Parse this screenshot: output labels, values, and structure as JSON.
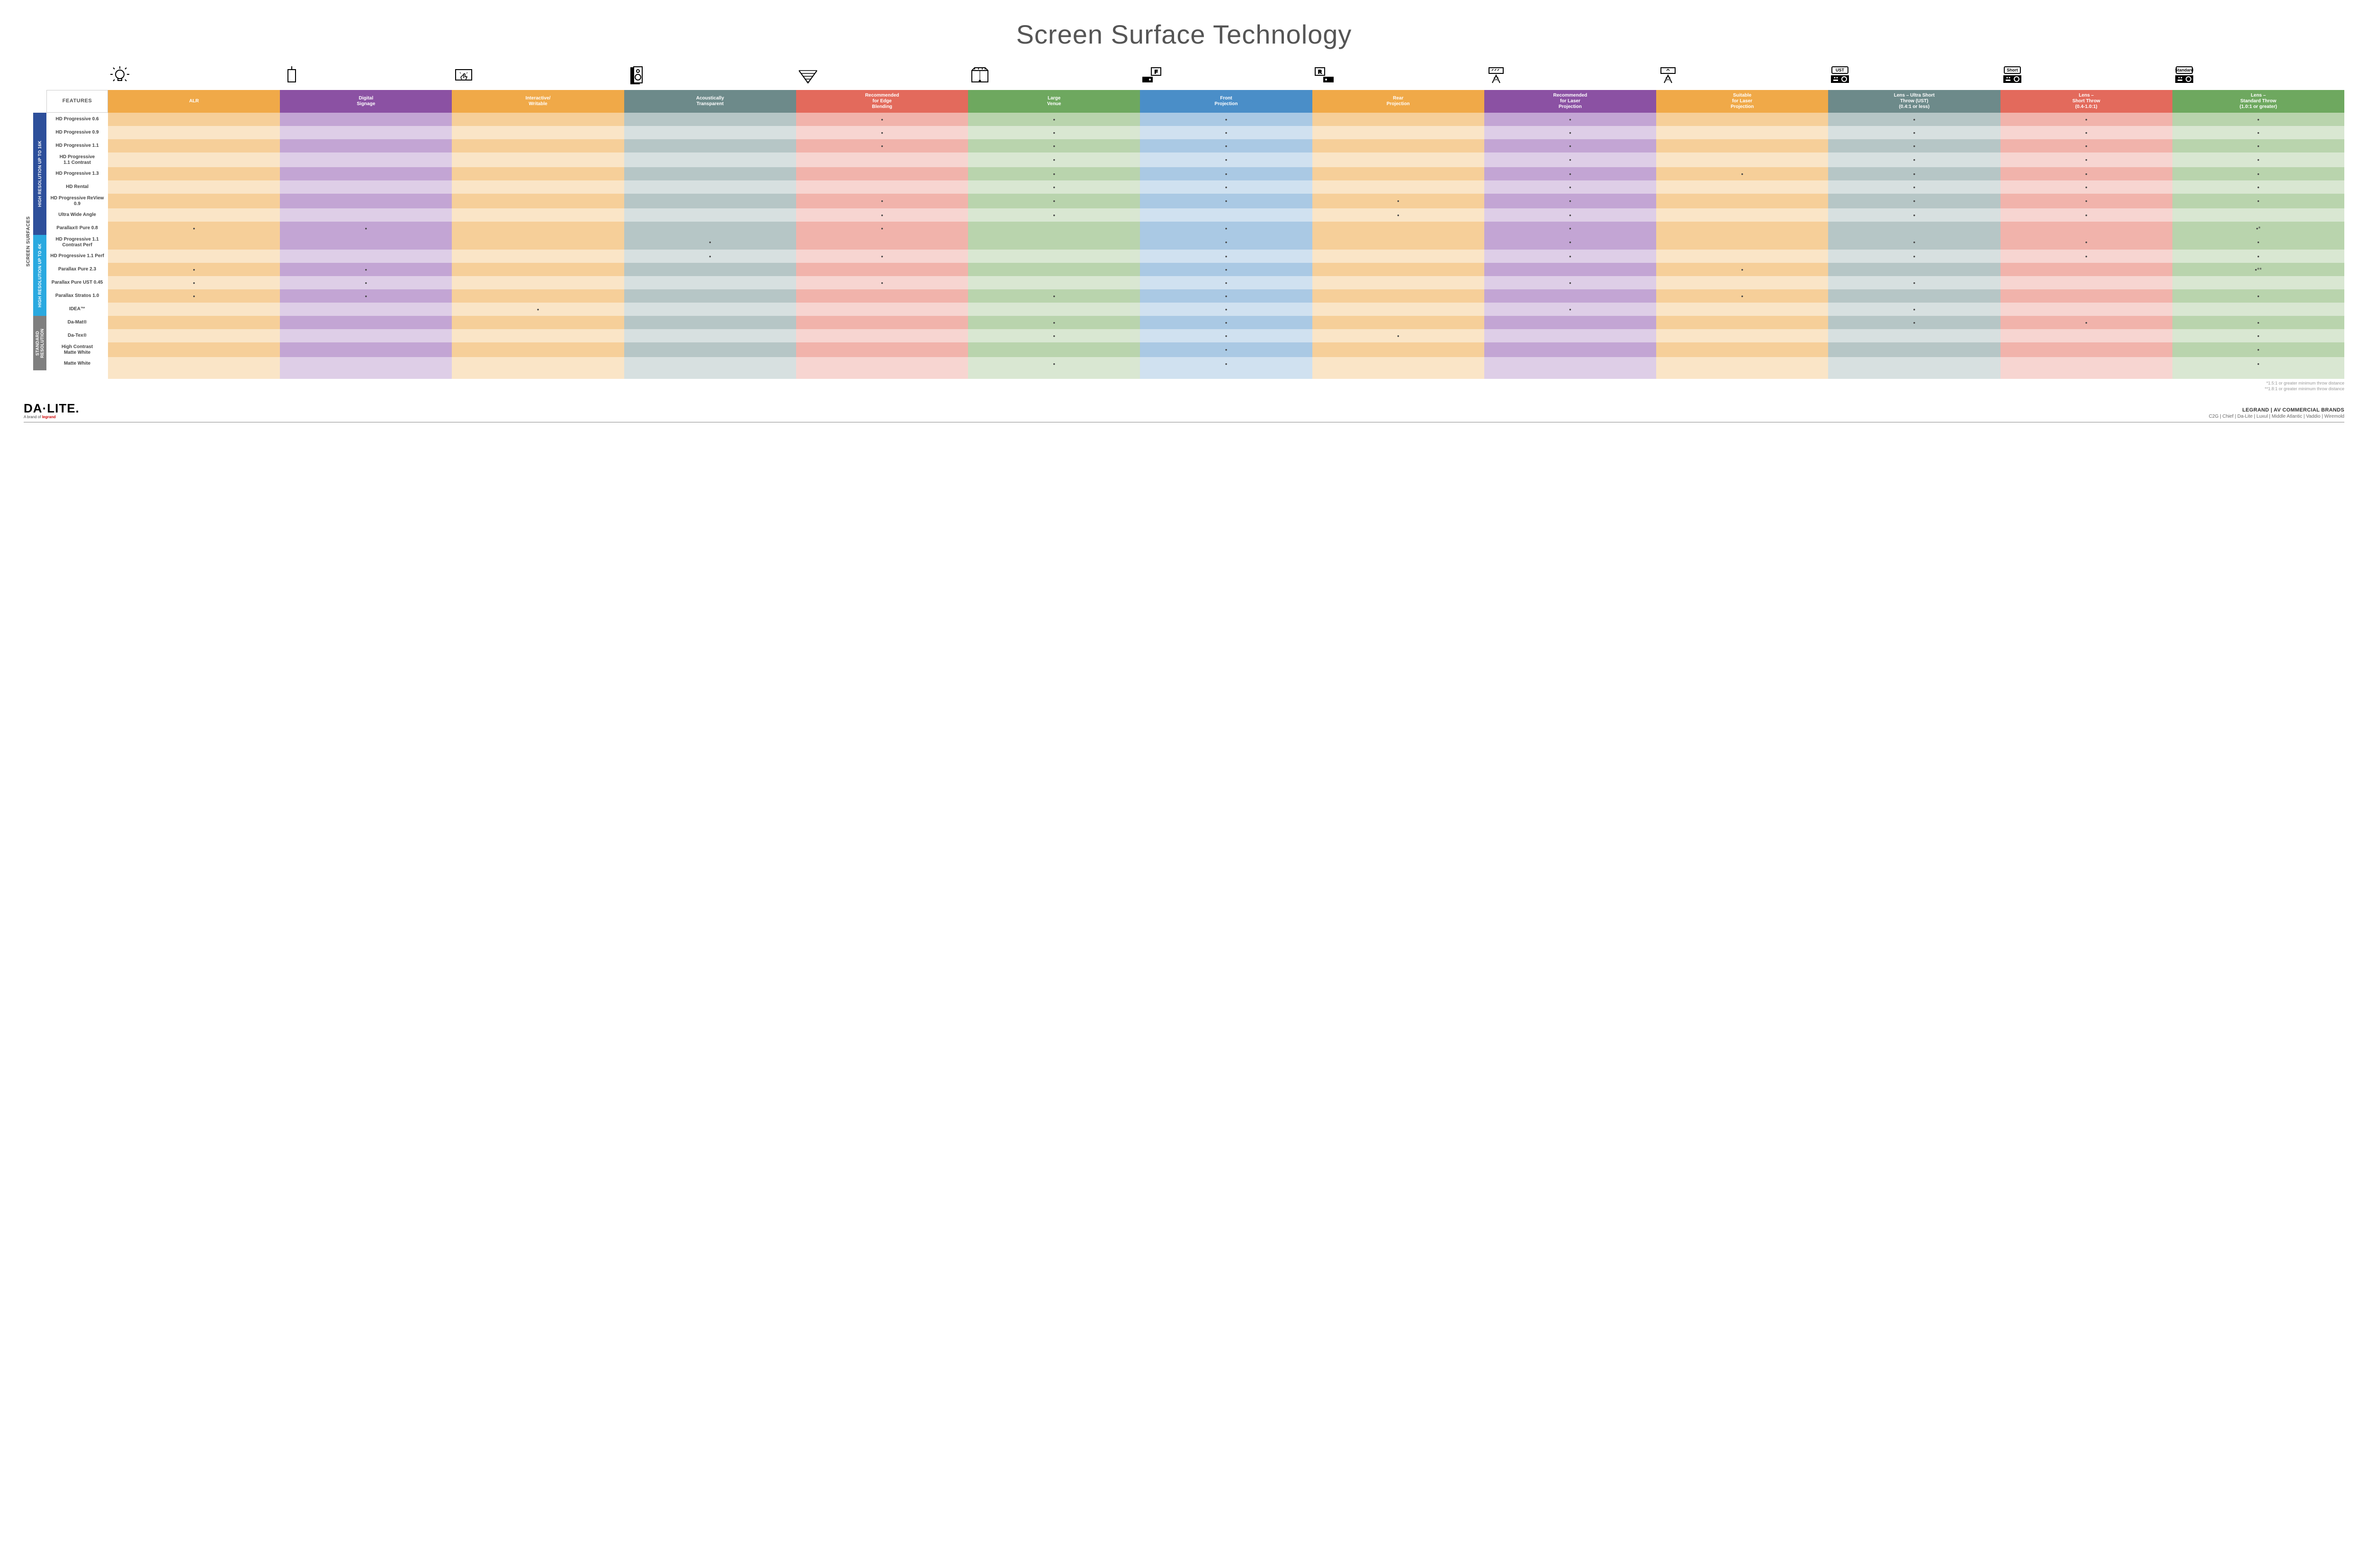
{
  "title": "Screen Surface Technology",
  "surfaces_label": "SCREEN SURFACES",
  "features_header": "FEATURES",
  "columns": [
    {
      "id": "alr",
      "label": "ALR",
      "color": "#f0a948",
      "alt": "#f6cf99",
      "icon": "bulb"
    },
    {
      "id": "signage",
      "label": "Digital\nSignage",
      "color": "#8b51a3",
      "alt": "#c3a5d4",
      "icon": "signage"
    },
    {
      "id": "interactive",
      "label": "Interactive/\nWritable",
      "color": "#f0a948",
      "alt": "#f6cf99",
      "icon": "touch"
    },
    {
      "id": "acoustic",
      "label": "Acoustically\nTransparent",
      "color": "#6d8a8a",
      "alt": "#b6c6c6",
      "icon": "speaker"
    },
    {
      "id": "edge",
      "label": "Recommended\nfor Edge\nBlending",
      "color": "#e36a5c",
      "alt": "#f1b3ab",
      "icon": "blend"
    },
    {
      "id": "large",
      "label": "Large\nVenue",
      "color": "#6ea85f",
      "alt": "#b9d4ad",
      "icon": "venue"
    },
    {
      "id": "front",
      "label": "Front\nProjection",
      "color": "#4a8ec8",
      "alt": "#aac9e4",
      "icon": "front"
    },
    {
      "id": "rear",
      "label": "Rear\nProjection",
      "color": "#f0a948",
      "alt": "#f6cf99",
      "icon": "rear"
    },
    {
      "id": "reclaser",
      "label": "Recommended\nfor Laser\nProjection",
      "color": "#8b51a3",
      "alt": "#c3a5d4",
      "icon": "laser3"
    },
    {
      "id": "suitlaser",
      "label": "Suitable\nfor Laser\nProjection",
      "color": "#f0a948",
      "alt": "#f6cf99",
      "icon": "laser1"
    },
    {
      "id": "ust",
      "label": "Lens – Ultra Short\nThrow (UST)\n(0.4:1 or less)",
      "color": "#6d8a8a",
      "alt": "#b6c6c6",
      "icon": "proj",
      "badge": "UST"
    },
    {
      "id": "short",
      "label": "Lens –\nShort Throw\n(0.4-1.0:1)",
      "color": "#e36a5c",
      "alt": "#f1b3ab",
      "icon": "proj",
      "badge": "Short"
    },
    {
      "id": "std",
      "label": "Lens –\nStandard Throw\n(1.0:1 or greater)",
      "color": "#6ea85f",
      "alt": "#b9d4ad",
      "icon": "proj",
      "badge": "Standard"
    }
  ],
  "categories": [
    {
      "id": "hr16k",
      "label": "HIGH RESOLUTION UP TO 16K",
      "color": "#2d4f9b"
    },
    {
      "id": "hr4k",
      "label": "HIGH RESOLUTION UP TO 4K",
      "color": "#2aa9e0"
    },
    {
      "id": "stdres",
      "label": "STANDARD\nRESOLUTION",
      "color": "#7f7f7f"
    }
  ],
  "rows": [
    {
      "cat": "hr16k",
      "label": "HD Progressive 0.6",
      "dots": {
        "edge": "•",
        "large": "•",
        "front": "•",
        "reclaser": "•",
        "ust": "•",
        "short": "•",
        "std": "•"
      }
    },
    {
      "cat": "hr16k",
      "label": "HD Progressive 0.9",
      "dots": {
        "edge": "•",
        "large": "•",
        "front": "•",
        "reclaser": "•",
        "ust": "•",
        "short": "•",
        "std": "•"
      }
    },
    {
      "cat": "hr16k",
      "label": "HD Progressive 1.1",
      "dots": {
        "edge": "•",
        "large": "•",
        "front": "•",
        "reclaser": "•",
        "ust": "•",
        "short": "•",
        "std": "•"
      }
    },
    {
      "cat": "hr16k",
      "label": "HD Progressive\n1.1 Contrast",
      "dots": {
        "large": "•",
        "front": "•",
        "reclaser": "•",
        "ust": "•",
        "short": "•",
        "std": "•"
      }
    },
    {
      "cat": "hr16k",
      "label": "HD Progressive 1.3",
      "dots": {
        "large": "•",
        "front": "•",
        "reclaser": "•",
        "suitlaser": "•",
        "ust": "•",
        "short": "•",
        "std": "•"
      }
    },
    {
      "cat": "hr16k",
      "label": "HD Rental",
      "dots": {
        "large": "•",
        "front": "•",
        "reclaser": "•",
        "ust": "•",
        "short": "•",
        "std": "•"
      }
    },
    {
      "cat": "hr16k",
      "label": "HD Progressive ReView 0.9",
      "dots": {
        "edge": "•",
        "large": "•",
        "front": "•",
        "rear": "•",
        "reclaser": "•",
        "ust": "•",
        "short": "•",
        "std": "•"
      }
    },
    {
      "cat": "hr16k",
      "label": "Ultra Wide Angle",
      "dots": {
        "edge": "•",
        "large": "•",
        "rear": "•",
        "reclaser": "•",
        "ust": "•",
        "short": "•"
      }
    },
    {
      "cat": "hr16k",
      "label": "Parallax® Pure 0.8",
      "dots": {
        "alr": "•",
        "signage": "•",
        "edge": "•",
        "front": "•",
        "reclaser": "•",
        "std": "•*"
      }
    },
    {
      "cat": "hr4k",
      "label": "HD Progressive 1.1\nContrast Perf",
      "dots": {
        "acoustic": "•",
        "front": "•",
        "reclaser": "•",
        "ust": "•",
        "short": "•",
        "std": "•"
      }
    },
    {
      "cat": "hr4k",
      "label": "HD Progressive 1.1 Perf",
      "dots": {
        "acoustic": "•",
        "edge": "•",
        "front": "•",
        "reclaser": "•",
        "ust": "•",
        "short": "•",
        "std": "•"
      }
    },
    {
      "cat": "hr4k",
      "label": "Parallax Pure 2.3",
      "dots": {
        "alr": "•",
        "signage": "•",
        "front": "•",
        "suitlaser": "•",
        "std": "•**"
      }
    },
    {
      "cat": "hr4k",
      "label": "Parallax Pure UST 0.45",
      "dots": {
        "alr": "•",
        "signage": "•",
        "edge": "•",
        "front": "•",
        "reclaser": "•",
        "ust": "•"
      }
    },
    {
      "cat": "hr4k",
      "label": "Parallax Stratos 1.0",
      "dots": {
        "alr": "•",
        "signage": "•",
        "large": "•",
        "front": "•",
        "suitlaser": "•",
        "std": "•"
      }
    },
    {
      "cat": "hr4k",
      "label": "IDEA™",
      "dots": {
        "interactive": "•",
        "front": "•",
        "reclaser": "•",
        "ust": "•"
      }
    },
    {
      "cat": "stdres",
      "label": "Da-Mat®",
      "dots": {
        "large": "•",
        "front": "•",
        "ust": "•",
        "short": "•",
        "std": "•"
      }
    },
    {
      "cat": "stdres",
      "label": "Da-Tex®",
      "dots": {
        "large": "•",
        "front": "•",
        "rear": "•",
        "std": "•"
      }
    },
    {
      "cat": "stdres",
      "label": "High Contrast\nMatte White",
      "dots": {
        "front": "•",
        "std": "•"
      }
    },
    {
      "cat": "stdres",
      "label": "Matte White",
      "dots": {
        "large": "•",
        "front": "•",
        "std": "•"
      }
    }
  ],
  "footnotes": [
    "*1.5:1 or greater minimum throw distance",
    "**1.8:1 or greater minimum throw distance"
  ],
  "footer": {
    "logo_main": "DA·LITE.",
    "logo_sub_pre": "A brand of ",
    "logo_sub_brand": "legrand",
    "brands_line1": "LEGRAND | AV COMMERCIAL BRANDS",
    "brands_line2": "C2G  |  Chief  |  Da-Lite  |  Luxul  |  Middle Atlantic  |  Vaddio  |  Wiremold"
  }
}
